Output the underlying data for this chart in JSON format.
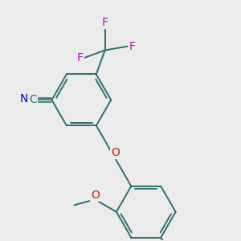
{
  "bg_color": "#ebebeb",
  "bond_color": "#2d6e6e",
  "bond_width": 1.4,
  "figsize": [
    3.0,
    3.0
  ],
  "dpi": 100,
  "colors": {
    "N": "#0000cc",
    "O": "#cc2200",
    "F": "#cc00cc",
    "C": "#2d6e6e",
    "bond": "#2d6e6e"
  }
}
